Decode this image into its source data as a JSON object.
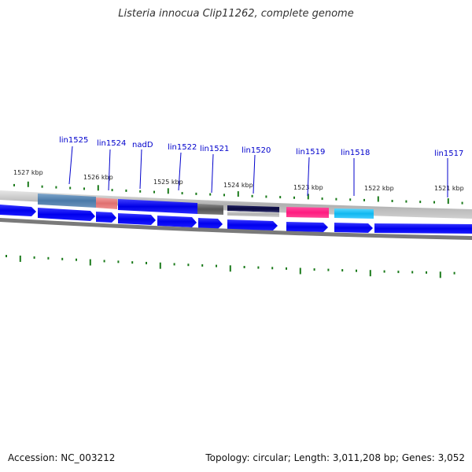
{
  "title": "Listeria innocua Clip11262, complete genome",
  "footer": {
    "accession": "Accession: NC_003212",
    "summary": "Topology: circular; Length: 3,011,208 bp; Genes: 3,052"
  },
  "colors": {
    "gene_label": "#0000cc",
    "tick": "#1a7a1a",
    "cds": "#0000ff",
    "backbone": "#808080"
  },
  "kbp_labels": [
    "1527 kbp",
    "1526 kbp",
    "1525 kbp",
    "1524 kbp",
    "1523 kbp",
    "1522 kbp",
    "1521 kbp"
  ],
  "gene_labels": [
    "lin1525",
    "lin1524",
    "nadD",
    "lin1522",
    "lin1521",
    "lin1520",
    "lin1519",
    "lin1518",
    "lin1517"
  ]
}
